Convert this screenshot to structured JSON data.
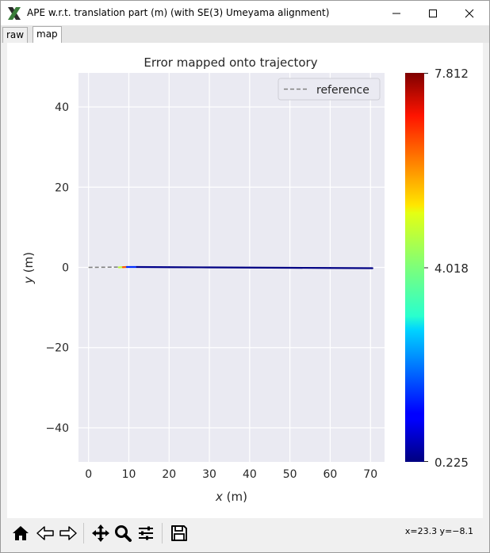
{
  "window": {
    "title": "APE w.r.t. translation part (m) (with SE(3) Umeyama alignment)",
    "icon": "x-logo-icon",
    "controls": [
      "minimize-icon",
      "maximize-icon",
      "close-icon"
    ]
  },
  "tabs": [
    {
      "label": "raw",
      "active": false
    },
    {
      "label": "map",
      "active": true
    }
  ],
  "plot": {
    "title": "Error mapped onto trajectory",
    "x_ticks": [
      "0",
      "10",
      "20",
      "30",
      "40",
      "50",
      "60",
      "70"
    ],
    "y_ticks": [
      "40",
      "20",
      "0",
      "−20",
      "−40"
    ],
    "legend_label": "reference",
    "colorbar_ticks": [
      "7.812",
      "4.018",
      "0.225"
    ]
  },
  "chart_data": {
    "type": "line",
    "title": "Error mapped onto trajectory",
    "xlabel_italic": "x",
    "xlabel_unit": " (m)",
    "ylabel_italic": "y",
    "ylabel_unit": " (m)",
    "xlim": [
      -2.5,
      73.5
    ],
    "ylim": [
      -48.5,
      48.5
    ],
    "x_tick_values": [
      0,
      10,
      20,
      30,
      40,
      50,
      60,
      70
    ],
    "y_tick_values": [
      40,
      20,
      0,
      -20,
      -40
    ],
    "grid": true,
    "legend_position": "top-right",
    "series": [
      {
        "name": "reference",
        "style": "dashed",
        "color": "#808080",
        "x": [
          0,
          10,
          20,
          30,
          40,
          50,
          60,
          70.5
        ],
        "y": [
          0,
          0.1,
          0.05,
          0.0,
          -0.05,
          -0.1,
          -0.15,
          -0.2
        ]
      },
      {
        "style": "colormap",
        "colormap": "jet",
        "x": [
          7.5,
          8.5,
          9.5,
          12,
          20,
          30,
          40,
          50,
          60,
          70.5
        ],
        "y": [
          0.0,
          0.05,
          0.1,
          0.1,
          0.05,
          0.0,
          -0.05,
          -0.1,
          -0.15,
          -0.2
        ],
        "error": [
          4.5,
          6.2,
          1.5,
          0.3,
          0.25,
          0.25,
          0.25,
          0.25,
          0.25,
          0.26
        ]
      }
    ],
    "colorbar": {
      "min": 0.225,
      "mid": 4.018,
      "max": 7.812,
      "colormap": "jet"
    }
  },
  "toolbar": {
    "buttons": [
      "home-icon",
      "back-icon",
      "forward-icon",
      "pan-icon",
      "zoom-icon",
      "configure-subplots-icon",
      "save-icon"
    ],
    "coords_text": "x=23.3 y=−8.1"
  },
  "colors": {
    "plot_bg": "#eaeaf2",
    "grid": "#ffffff",
    "trajectory": "#00008b"
  }
}
